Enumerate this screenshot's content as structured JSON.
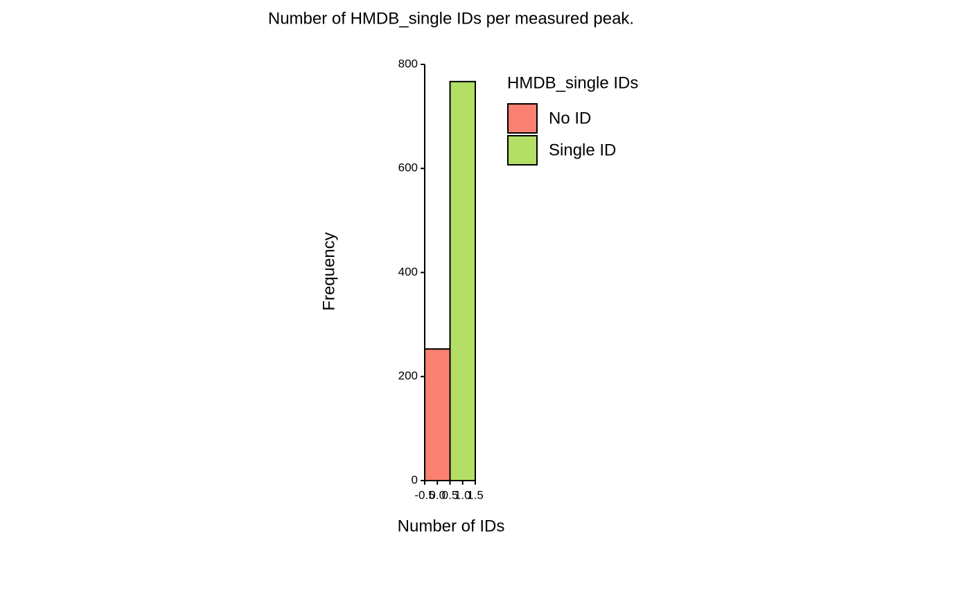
{
  "chart_data": {
    "type": "histogram",
    "title": "Number of HMDB_single IDs per measured peak.",
    "xlabel": "Number of IDs",
    "ylabel": "Frequency",
    "legend_title": "HMDB_single IDs",
    "bins": [
      -0.5,
      0.5,
      1.5
    ],
    "series": [
      {
        "name": "No ID",
        "color": "#fa8072",
        "values": [
          253,
          null
        ]
      },
      {
        "name": "Single ID",
        "color": "#b3df66",
        "values": [
          null,
          767
        ]
      }
    ],
    "xlim": [
      -0.5,
      1.5
    ],
    "xticks": [
      -0.5,
      {
        "value": 0,
        "label": "0.0"
      },
      0.5,
      {
        "value": 1,
        "label": "1.0"
      },
      1.5
    ],
    "ylim": [
      0,
      800
    ],
    "yticks": [
      0,
      200,
      400,
      600,
      800
    ]
  }
}
